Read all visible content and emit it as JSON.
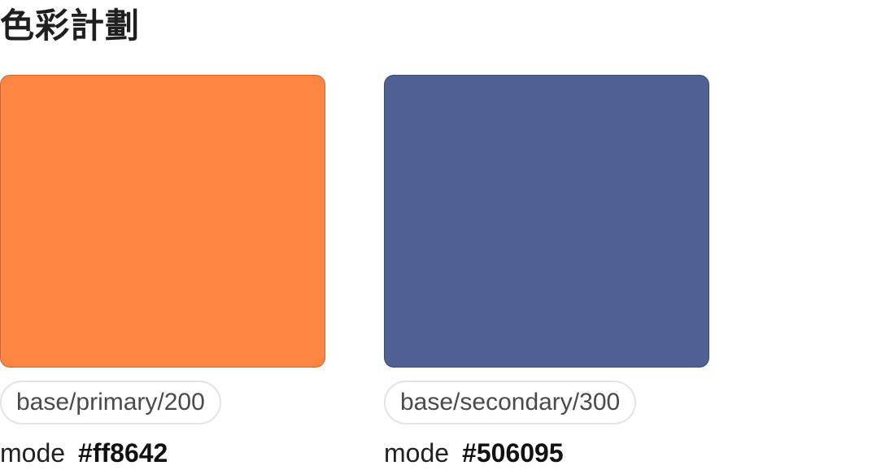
{
  "page": {
    "title": "色彩計劃"
  },
  "swatches": [
    {
      "color": "#ff8642",
      "token": "base/primary/200",
      "mode_label": "mode",
      "mode_value": "#ff8642"
    },
    {
      "color": "#506095",
      "token": "base/secondary/300",
      "mode_label": "mode",
      "mode_value": "#506095"
    }
  ]
}
